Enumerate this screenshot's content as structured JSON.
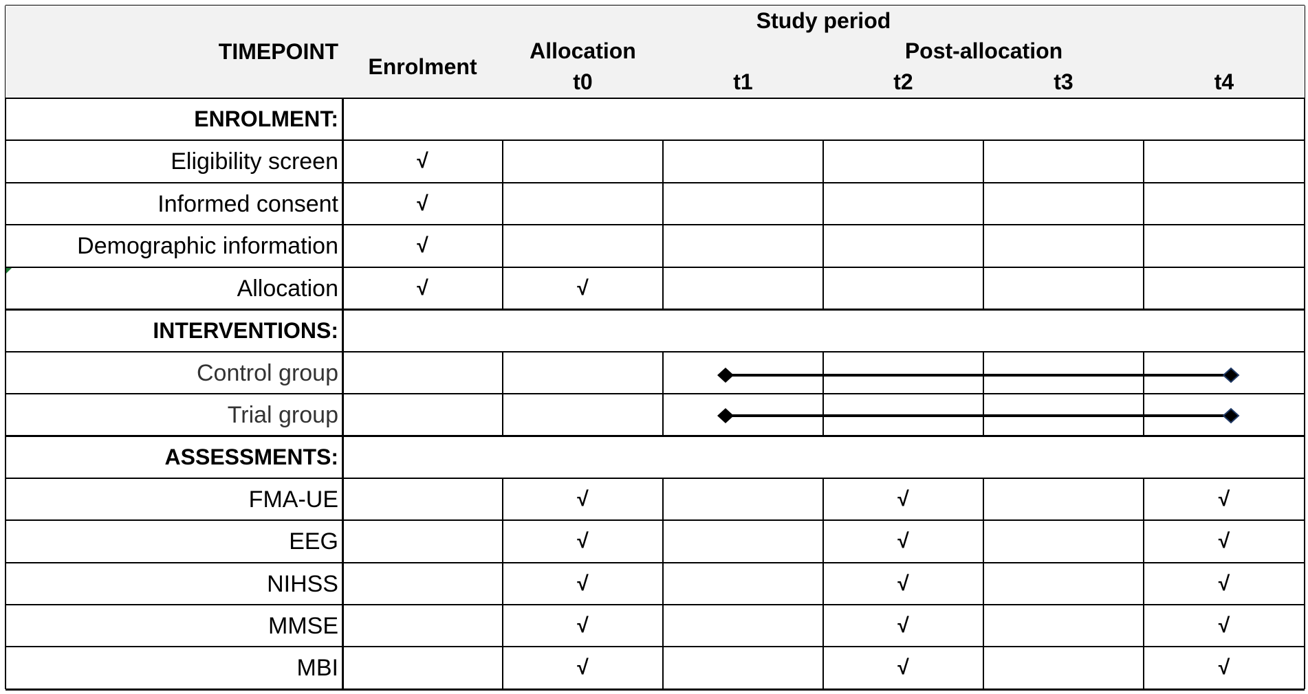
{
  "header": {
    "study_period": "Study period",
    "timepoint": "TIMEPOINT",
    "enrolment": "Enrolment",
    "allocation": "Allocation",
    "post_allocation": "Post-allocation",
    "timepoints": [
      "t0",
      "t1",
      "t2",
      "t3",
      "t4"
    ]
  },
  "sections": {
    "enrolment": "ENROLMENT:",
    "interventions": "INTERVENTIONS:",
    "assessments": "ASSESSMENTS:"
  },
  "rows": {
    "eligibility": {
      "label": "Eligibility screen",
      "checks": [
        "√",
        "",
        "",
        "",
        "",
        ""
      ]
    },
    "consent": {
      "label": "Informed consent",
      "checks": [
        "√",
        "",
        "",
        "",
        "",
        ""
      ]
    },
    "demographic": {
      "label": "Demographic information",
      "checks": [
        "√",
        "",
        "",
        "",
        "",
        ""
      ]
    },
    "allocation": {
      "label": "Allocation",
      "checks": [
        "√",
        "√",
        "",
        "",
        "",
        ""
      ]
    },
    "control": {
      "label": "Control group"
    },
    "trial": {
      "label": "Trial group"
    },
    "fma": {
      "label": "FMA-UE",
      "checks": [
        "",
        "√",
        "",
        "√",
        "",
        "√"
      ]
    },
    "eeg": {
      "label": "EEG",
      "checks": [
        "",
        "√",
        "",
        "√",
        "",
        "√"
      ]
    },
    "nihss": {
      "label": "NIHSS",
      "checks": [
        "",
        "√",
        "",
        "√",
        "",
        "√"
      ]
    },
    "mmse": {
      "label": "MMSE",
      "checks": [
        "",
        "√",
        "",
        "√",
        "",
        "√"
      ]
    },
    "mbi": {
      "label": "MBI",
      "checks": [
        "",
        "√",
        "",
        "√",
        "",
        "√"
      ]
    }
  },
  "colors": {
    "grid": "#000000",
    "header_bg": "#f2f2f2",
    "corner_marker": "#1e7b34",
    "bar_end_marker": "#1f3864"
  }
}
